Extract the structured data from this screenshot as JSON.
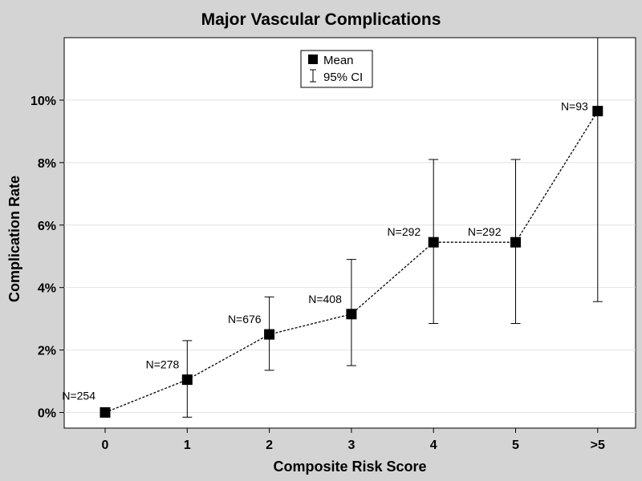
{
  "chart_data": {
    "type": "line",
    "title": "Major Vascular Complications",
    "xlabel": "Composite Risk Score",
    "ylabel": "Complication Rate",
    "categories": [
      "0",
      "1",
      "2",
      "3",
      "4",
      "5",
      ">5"
    ],
    "ylim": [
      -0.5,
      12
    ],
    "yticks": [
      0,
      2,
      4,
      6,
      8,
      10
    ],
    "ytick_labels": [
      "0%",
      "2%",
      "4%",
      "6%",
      "8%",
      "10%"
    ],
    "grid": true,
    "legend": {
      "placement": "top-center",
      "entries": [
        "Mean",
        "95% CI"
      ]
    },
    "series": [
      {
        "name": "Mean",
        "values": [
          0,
          1.05,
          2.5,
          3.15,
          5.45,
          5.45,
          9.65
        ],
        "ci_lower": [
          0,
          -0.15,
          1.35,
          1.5,
          2.85,
          2.85,
          3.55
        ],
        "ci_upper": [
          0,
          2.3,
          3.7,
          4.9,
          8.1,
          8.1,
          12
        ],
        "n_labels": [
          "N=254",
          "N=278",
          "N=676",
          "N=408",
          "N=292",
          "N=292",
          "N=93"
        ]
      }
    ]
  }
}
